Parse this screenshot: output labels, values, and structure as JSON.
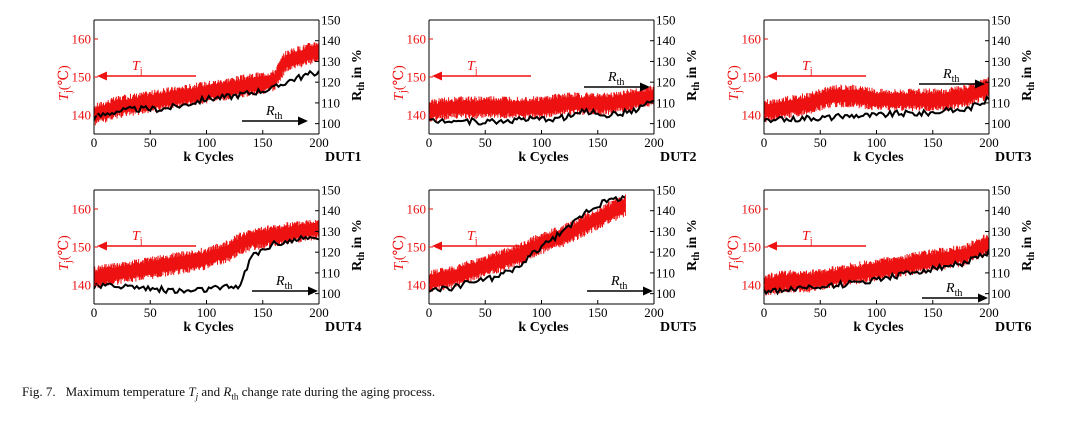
{
  "caption": {
    "label": "Fig. 7.",
    "text_before": "Maximum temperature",
    "tj_symbol": "T",
    "tj_sub": "j",
    "text_and": "and",
    "rth_symbol": "R",
    "rth_sub": "th",
    "text_after": "change rate during the aging process."
  },
  "colors": {
    "tj": "#ee1111",
    "rth": "#000000",
    "axis": "#000000"
  },
  "chart_data": [
    {
      "type": "line",
      "title": "DUT1",
      "xlabel": "k Cycles",
      "ylabel_left": "Tj(℃)",
      "ylabel_right": "Rth in %",
      "annotations": {
        "tj_arrow": "Tj",
        "rth_arrow": "Rth"
      },
      "xlim": [
        0,
        200
      ],
      "ylim_left": [
        135,
        165
      ],
      "ylim_right": [
        95,
        150
      ],
      "x_ticks": [
        "0",
        "50",
        "100",
        "150",
        "200"
      ],
      "y_ticks_left": [
        "140",
        "150",
        "160"
      ],
      "y_ticks_right": [
        "100",
        "110",
        "120",
        "130",
        "140",
        "150"
      ],
      "x": [
        0,
        20,
        40,
        60,
        80,
        100,
        120,
        140,
        160,
        170,
        180,
        200
      ],
      "series": [
        {
          "name": "Tj",
          "axis": "left",
          "values": [
            140,
            142,
            143,
            144,
            145,
            146,
            147,
            148,
            149,
            154,
            155,
            157
          ]
        },
        {
          "name": "Rth",
          "axis": "right",
          "values": [
            103,
            106,
            107,
            107,
            109,
            112,
            113,
            115,
            117,
            120,
            122,
            125
          ]
        }
      ]
    },
    {
      "type": "line",
      "title": "DUT2",
      "xlabel": "k Cycles",
      "ylabel_left": "Tj(℃)",
      "ylabel_right": "Rth in %",
      "annotations": {
        "tj_arrow": "Tj",
        "rth_arrow": "Rth"
      },
      "xlim": [
        0,
        200
      ],
      "ylim_left": [
        135,
        165
      ],
      "ylim_right": [
        95,
        150
      ],
      "x_ticks": [
        "0",
        "50",
        "100",
        "150",
        "200"
      ],
      "y_ticks_left": [
        "140",
        "150",
        "160"
      ],
      "y_ticks_right": [
        "100",
        "110",
        "120",
        "130",
        "140",
        "150"
      ],
      "x": [
        0,
        20,
        40,
        60,
        80,
        100,
        120,
        140,
        160,
        180,
        200
      ],
      "series": [
        {
          "name": "Tj",
          "axis": "left",
          "values": [
            141,
            142,
            142,
            142,
            142,
            142,
            143,
            143,
            143,
            144,
            145
          ]
        },
        {
          "name": "Rth",
          "axis": "right",
          "values": [
            101,
            102,
            101,
            101,
            102,
            102,
            103,
            106,
            104,
            106,
            111
          ]
        }
      ]
    },
    {
      "type": "line",
      "title": "DUT3",
      "xlabel": "k Cycles",
      "ylabel_left": "Tj(℃)",
      "ylabel_right": "Rth in %",
      "annotations": {
        "tj_arrow": "Tj",
        "rth_arrow": "Rth"
      },
      "xlim": [
        0,
        200
      ],
      "ylim_left": [
        135,
        165
      ],
      "ylim_right": [
        95,
        150
      ],
      "x_ticks": [
        "0",
        "50",
        "100",
        "150",
        "200"
      ],
      "y_ticks_left": [
        "140",
        "150",
        "160"
      ],
      "y_ticks_right": [
        "100",
        "110",
        "120",
        "130",
        "140",
        "150"
      ],
      "x": [
        0,
        20,
        40,
        60,
        80,
        100,
        120,
        140,
        160,
        180,
        200
      ],
      "series": [
        {
          "name": "Tj",
          "axis": "left",
          "values": [
            141,
            142,
            143,
            145,
            145,
            144,
            144,
            144,
            144,
            145,
            147
          ]
        },
        {
          "name": "Rth",
          "axis": "right",
          "values": [
            101,
            102,
            103,
            103,
            104,
            104,
            105,
            105,
            106,
            107,
            112
          ]
        }
      ]
    },
    {
      "type": "line",
      "title": "DUT4",
      "xlabel": "k Cycles",
      "ylabel_left": "Tj(℃)",
      "ylabel_right": "Rth in %",
      "annotations": {
        "tj_arrow": "Tj",
        "rth_arrow": "Rth"
      },
      "xlim": [
        0,
        200
      ],
      "ylim_left": [
        135,
        165
      ],
      "ylim_right": [
        95,
        150
      ],
      "x_ticks": [
        "0",
        "50",
        "100",
        "150",
        "200"
      ],
      "y_ticks_left": [
        "140",
        "150",
        "160"
      ],
      "y_ticks_right": [
        "100",
        "110",
        "120",
        "130",
        "140",
        "150"
      ],
      "x": [
        0,
        20,
        40,
        60,
        80,
        100,
        120,
        130,
        140,
        160,
        180,
        200
      ],
      "series": [
        {
          "name": "Tj",
          "axis": "left",
          "values": [
            142,
            143,
            144,
            145,
            146,
            147,
            149,
            151,
            152,
            153,
            154,
            155
          ]
        },
        {
          "name": "Rth",
          "axis": "right",
          "values": [
            103,
            104,
            103,
            102,
            101,
            102,
            103,
            104,
            118,
            124,
            126,
            127
          ]
        }
      ]
    },
    {
      "type": "line",
      "title": "DUT5",
      "xlabel": "k Cycles",
      "ylabel_left": "Tj(℃)",
      "ylabel_right": "Rth in %",
      "annotations": {
        "tj_arrow": "Tj",
        "rth_arrow": "Rth"
      },
      "xlim": [
        0,
        200
      ],
      "ylim_left": [
        135,
        165
      ],
      "ylim_right": [
        95,
        150
      ],
      "x_ticks": [
        "0",
        "50",
        "100",
        "150",
        "200"
      ],
      "y_ticks_left": [
        "140",
        "150",
        "160"
      ],
      "y_ticks_right": [
        "100",
        "110",
        "120",
        "130",
        "140",
        "150"
      ],
      "x": [
        0,
        20,
        40,
        60,
        80,
        100,
        120,
        140,
        160,
        175
      ],
      "series": [
        {
          "name": "Tj",
          "axis": "left",
          "values": [
            141,
            142,
            144,
            146,
            148,
            151,
            153,
            156,
            159,
            161
          ]
        },
        {
          "name": "Rth",
          "axis": "right",
          "values": [
            101,
            103,
            106,
            108,
            113,
            123,
            130,
            140,
            145,
            147
          ]
        }
      ]
    },
    {
      "type": "line",
      "title": "DUT6",
      "xlabel": "k Cycles",
      "ylabel_left": "Tj(℃)",
      "ylabel_right": "Rth in %",
      "annotations": {
        "tj_arrow": "Tj",
        "rth_arrow": "Rth"
      },
      "xlim": [
        0,
        200
      ],
      "ylim_left": [
        135,
        165
      ],
      "ylim_right": [
        95,
        150
      ],
      "x_ticks": [
        "0",
        "50",
        "100",
        "150",
        "200"
      ],
      "y_ticks_left": [
        "140",
        "150",
        "160"
      ],
      "y_ticks_right": [
        "100",
        "110",
        "120",
        "130",
        "140",
        "150"
      ],
      "x": [
        0,
        20,
        40,
        60,
        80,
        100,
        120,
        140,
        160,
        180,
        200
      ],
      "series": [
        {
          "name": "Tj",
          "axis": "left",
          "values": [
            140,
            141,
            141,
            142,
            143,
            144,
            145,
            146,
            147,
            148,
            151
          ]
        },
        {
          "name": "Rth",
          "axis": "right",
          "values": [
            101,
            102,
            103,
            104,
            105,
            107,
            109,
            111,
            113,
            115,
            120
          ]
        }
      ]
    }
  ]
}
